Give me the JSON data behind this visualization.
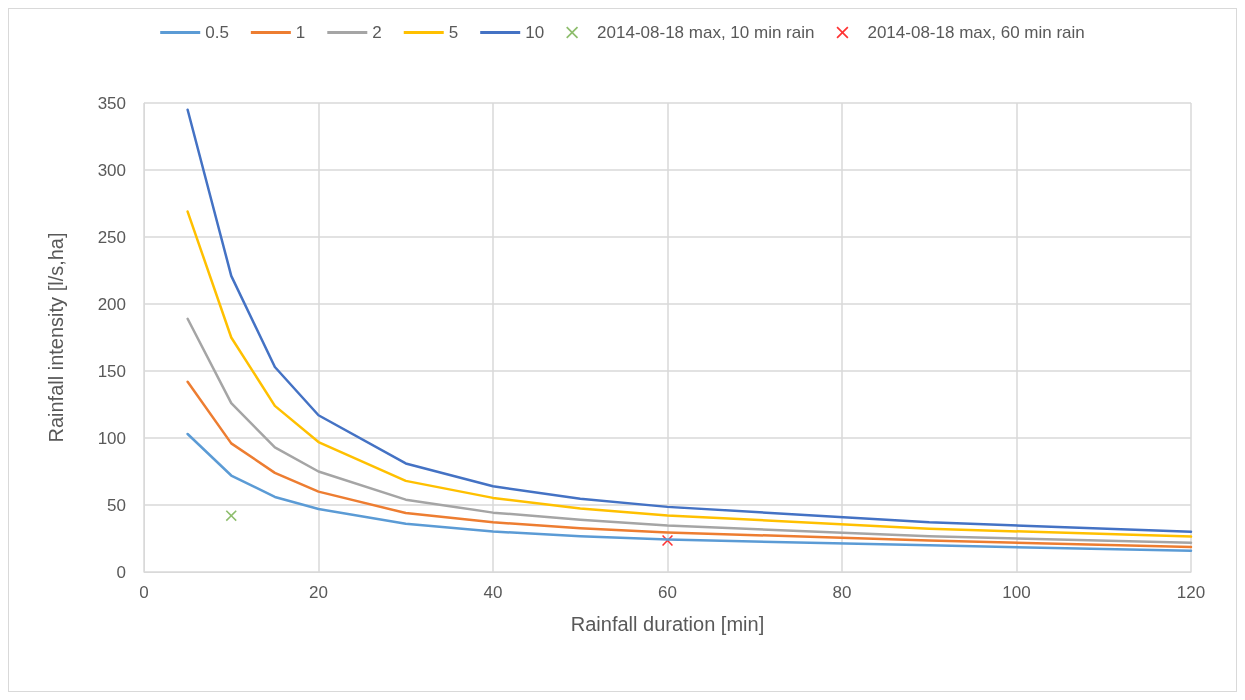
{
  "chart_data": {
    "type": "line",
    "xlabel": "Rainfall duration [min]",
    "ylabel": "Rainfall intensity [l/s,ha]",
    "x": [
      5,
      10,
      15,
      20,
      30,
      40,
      50,
      60,
      90,
      120
    ],
    "xlim": [
      0,
      120
    ],
    "xticks": [
      0,
      20,
      40,
      60,
      80,
      100,
      120
    ],
    "ylim": [
      0,
      350
    ],
    "yticks": [
      0,
      50,
      100,
      150,
      200,
      250,
      300,
      350
    ],
    "grid": true,
    "legend": "top",
    "line_style": "solid",
    "series": [
      {
        "name": "0.5",
        "color": "#5b9bd5",
        "marker": "none",
        "values": [
          103,
          72,
          56,
          47,
          36,
          30.2,
          26.6,
          24.2,
          19.9,
          15.8
        ]
      },
      {
        "name": "1",
        "color": "#ed7d31",
        "marker": "none",
        "values": [
          142,
          96,
          74,
          60,
          44,
          37.1,
          32.6,
          29.5,
          23.5,
          18.7
        ]
      },
      {
        "name": "2",
        "color": "#a5a5a5",
        "marker": "none",
        "values": [
          189,
          126,
          93,
          75,
          54,
          44.3,
          39,
          34.7,
          26.6,
          21.8
        ]
      },
      {
        "name": "5",
        "color": "#ffc000",
        "marker": "none",
        "values": [
          269,
          175,
          124,
          97,
          68,
          55.3,
          47.4,
          42.2,
          32.3,
          26.4
        ]
      },
      {
        "name": "10",
        "color": "#4472c4",
        "marker": "none",
        "values": [
          345,
          221,
          153,
          117,
          81,
          64,
          54.6,
          48.6,
          37.1,
          30
        ]
      },
      {
        "name": "2014-08-18 max, 10 min rain",
        "type": "scatter",
        "color": "#70ad47",
        "marker": "cross",
        "x": [
          10
        ],
        "values": [
          42
        ]
      },
      {
        "name": "2014-08-18 max, 60 min rain",
        "type": "scatter",
        "color": "#ff0000",
        "marker": "cross",
        "x": [
          60
        ],
        "values": [
          23.5
        ]
      }
    ]
  }
}
